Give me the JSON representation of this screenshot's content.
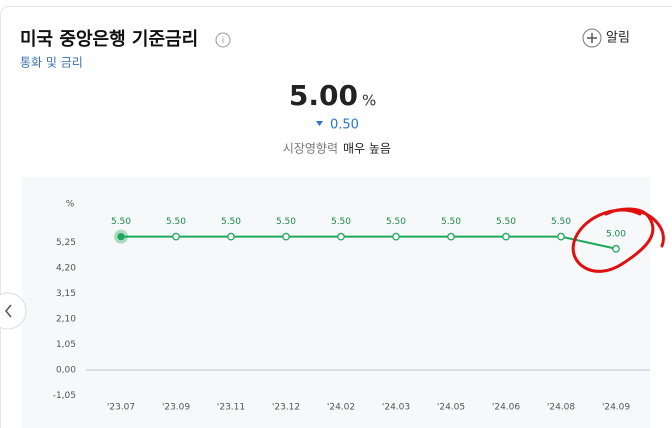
{
  "header": {
    "title": "미국 중앙은행 기준금리",
    "subtitle": "통화 및 금리",
    "alert": "알림"
  },
  "summary": {
    "value": "5.00",
    "unit": "%",
    "change": "0.50",
    "impact_label": "시장영향력",
    "impact_value": "매우 높음"
  },
  "chart_data": {
    "type": "line",
    "ylabel": "%",
    "categories": [
      "'23.07",
      "'23.09",
      "'23.11",
      "'23.12",
      "'24.02",
      "'24.03",
      "'24.05",
      "'24.06",
      "'24.08",
      "'24.09"
    ],
    "values": [
      5.5,
      5.5,
      5.5,
      5.5,
      5.5,
      5.5,
      5.5,
      5.5,
      5.5,
      5.0
    ],
    "value_labels": [
      "5.50",
      "5.50",
      "5.50",
      "5.50",
      "5.50",
      "5.50",
      "5.50",
      "5.50",
      "5.50",
      "5.00"
    ],
    "color": "#1ea85a",
    "ylim": [
      -1.05,
      6.6
    ],
    "yticks": [
      {
        "value": -1.05,
        "label": "-1,05"
      },
      {
        "value": 0,
        "label": "0,00"
      },
      {
        "value": 1.05,
        "label": "1,05"
      },
      {
        "value": 2.1,
        "label": "2,10"
      },
      {
        "value": 3.15,
        "label": "3,15"
      },
      {
        "value": 4.2,
        "label": "4,20"
      },
      {
        "value": 5.25,
        "label": "5,25"
      }
    ],
    "zero_line": true
  }
}
